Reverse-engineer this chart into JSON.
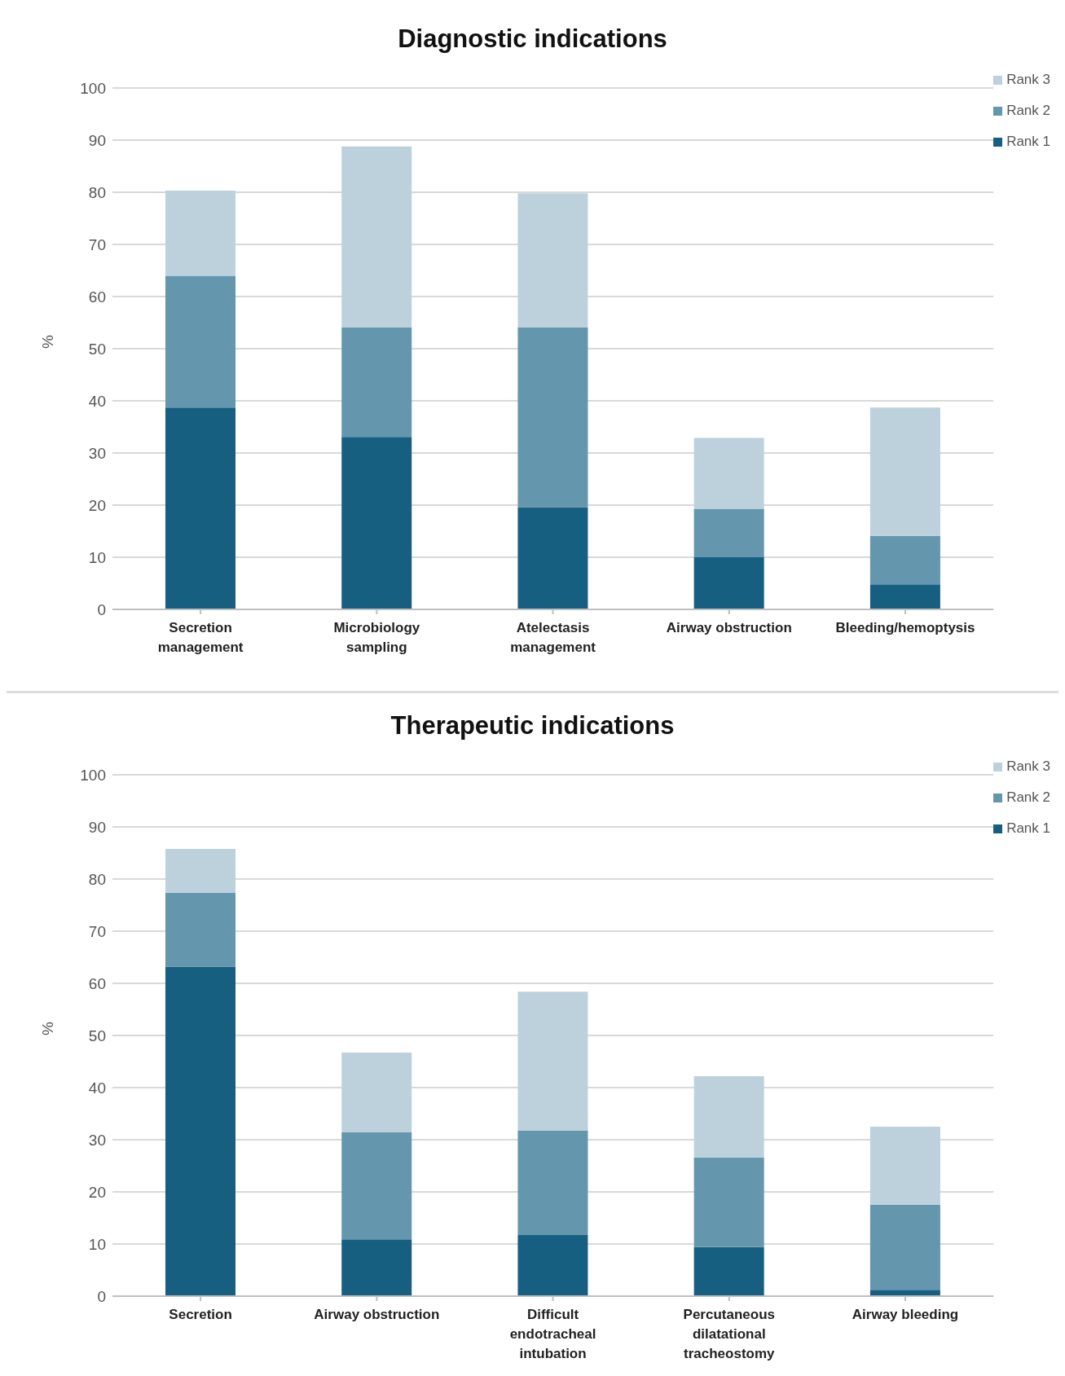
{
  "chart_data": [
    {
      "type": "bar",
      "title": "Diagnostic indications",
      "ylabel": "%",
      "stacked": true,
      "categories": [
        "Secretion management",
        "Microbiology sampling",
        "Atelectasis management",
        "Airway obstruction",
        "Bleeding/hemoptysis"
      ],
      "series": [
        {
          "name": "Rank 1",
          "color": "#175f80",
          "values": [
            38.7,
            33.1,
            19.6,
            10.0,
            4.8
          ]
        },
        {
          "name": "Rank 2",
          "color": "#6496ae",
          "values": [
            25.3,
            21.0,
            34.5,
            9.3,
            9.3
          ]
        },
        {
          "name": "Rank 3",
          "color": "#bdd1dc",
          "values": [
            16.3,
            34.7,
            25.7,
            13.6,
            24.6
          ]
        }
      ],
      "ylim": [
        0,
        100
      ],
      "yticks": [
        0,
        10,
        20,
        30,
        40,
        50,
        60,
        70,
        80,
        90,
        100
      ],
      "grid": "y",
      "legend": "top right"
    },
    {
      "type": "bar",
      "title": "Therapeutic indications",
      "ylabel": "%",
      "stacked": true,
      "categories": [
        "Secretion",
        "Airway obstruction",
        "Difficult endotracheal intubation",
        "Percutaneous dilatational tracheostomy",
        "Airway bleeding"
      ],
      "series": [
        {
          "name": "Rank 1",
          "color": "#175f80",
          "values": [
            63.2,
            10.9,
            11.7,
            9.4,
            1.2
          ]
        },
        {
          "name": "Rank 2",
          "color": "#6496ae",
          "values": [
            14.2,
            20.5,
            20.1,
            17.2,
            16.3
          ]
        },
        {
          "name": "Rank 3",
          "color": "#bdd1dc",
          "values": [
            8.4,
            15.3,
            26.6,
            15.6,
            15.0
          ]
        }
      ],
      "ylim": [
        0,
        100
      ],
      "yticks": [
        0,
        10,
        20,
        30,
        40,
        50,
        60,
        70,
        80,
        90,
        100
      ],
      "grid": "y",
      "legend": "top right"
    }
  ]
}
